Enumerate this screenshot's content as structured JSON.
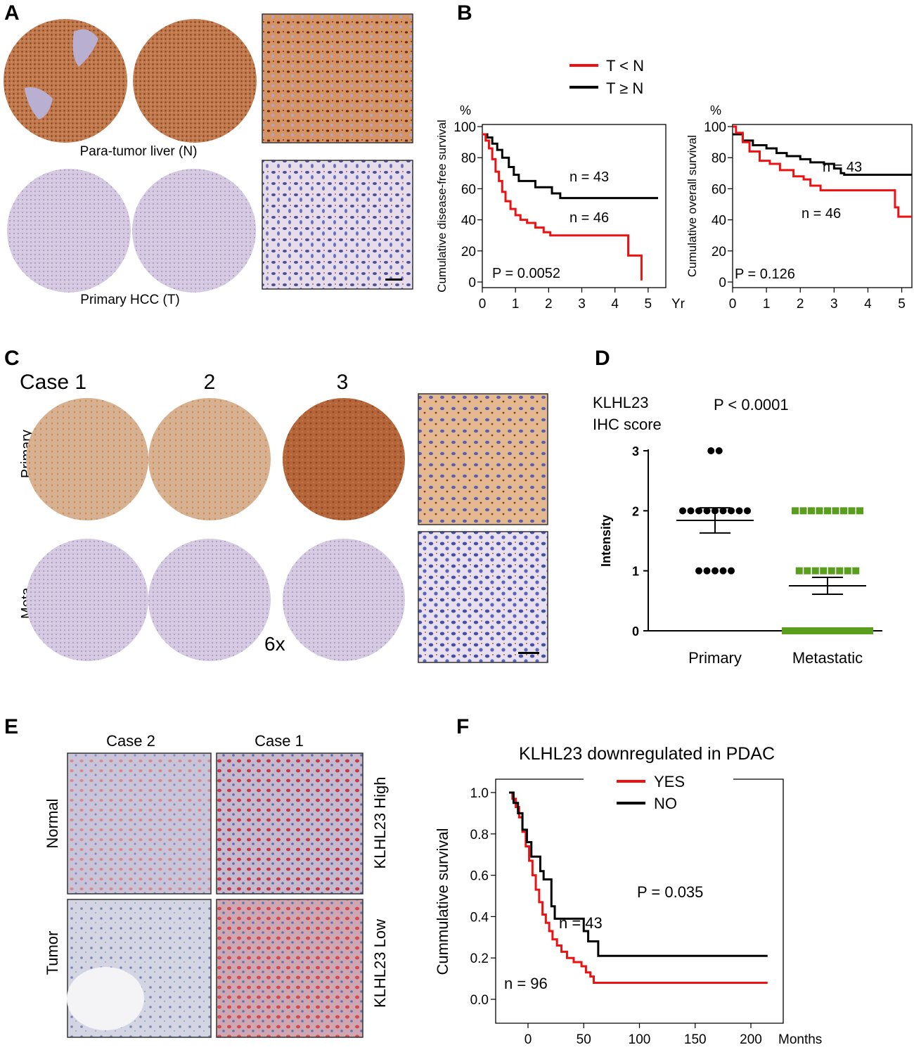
{
  "panels": {
    "A": {
      "letter": "A",
      "label_normal": "Para-tumor liver (N)",
      "label_tumor": "Primary HCC  (T)"
    },
    "B": {
      "letter": "B",
      "legend": [
        {
          "label": "T < N",
          "color": "#ee1111"
        },
        {
          "label": "T ≥ N",
          "color": "#000000"
        }
      ]
    },
    "C": {
      "letter": "C",
      "case_labels": [
        "Case 1",
        "2",
        "3"
      ],
      "row_labels": [
        "Primary",
        "Meta"
      ],
      "magnification": "6x"
    },
    "D": {
      "letter": "D"
    },
    "E": {
      "letter": "E",
      "col_labels": [
        "Case 2",
        "Case 1"
      ],
      "row_labels": [
        "Normal",
        "Tumor"
      ],
      "side_labels": [
        "KLHL23 High",
        "KLHL23 Low"
      ]
    },
    "F": {
      "letter": "F"
    }
  },
  "colors": {
    "red_series": "#ee1111",
    "black_series": "#000000",
    "green_series": "#5a9e1e",
    "ihc_brown": "#b5653a",
    "hematoxylin": "#c9bedb"
  },
  "chart_data": [
    {
      "id": "B1",
      "type": "line",
      "chart_kind": "kaplan-meier",
      "ylabel": "Cumulative disease-free survival",
      "yunit": "%",
      "xunit": "Yr",
      "xlim": [
        0,
        5.3
      ],
      "ylim": [
        0,
        100
      ],
      "xticks": [
        0,
        1,
        2,
        3,
        4,
        5
      ],
      "yticks": [
        0,
        20,
        40,
        60,
        80,
        100
      ],
      "p_value": "P = 0.0052",
      "annotations": [
        "n = 43",
        "n = 46"
      ],
      "series": [
        {
          "name": "T ≥ N",
          "color": "#000000",
          "points": [
            [
              0,
              95
            ],
            [
              0.15,
              93
            ],
            [
              0.3,
              89
            ],
            [
              0.45,
              85
            ],
            [
              0.6,
              80
            ],
            [
              0.8,
              74
            ],
            [
              0.95,
              69
            ],
            [
              1.1,
              65
            ],
            [
              1.4,
              65
            ],
            [
              1.6,
              61
            ],
            [
              1.9,
              61
            ],
            [
              2.1,
              57
            ],
            [
              2.35,
              54
            ],
            [
              5.3,
              54
            ]
          ]
        },
        {
          "name": "T < N",
          "color": "#ee1111",
          "points": [
            [
              0,
              95
            ],
            [
              0.1,
              91
            ],
            [
              0.2,
              86
            ],
            [
              0.3,
              79
            ],
            [
              0.4,
              71
            ],
            [
              0.5,
              65
            ],
            [
              0.6,
              58
            ],
            [
              0.7,
              52
            ],
            [
              0.85,
              47
            ],
            [
              1.0,
              43
            ],
            [
              1.15,
              40
            ],
            [
              1.35,
              38
            ],
            [
              1.6,
              35
            ],
            [
              1.85,
              32
            ],
            [
              2.05,
              30
            ],
            [
              4.35,
              30
            ],
            [
              4.4,
              17
            ],
            [
              4.75,
              17
            ],
            [
              4.8,
              1
            ]
          ]
        }
      ]
    },
    {
      "id": "B2",
      "type": "line",
      "chart_kind": "kaplan-meier",
      "ylabel": "Cumulative overall survival",
      "yunit": "%",
      "xunit": "Yr",
      "xlim": [
        0,
        5.3
      ],
      "ylim": [
        0,
        100
      ],
      "xticks": [
        0,
        1,
        2,
        3,
        4,
        5
      ],
      "yticks": [
        0,
        20,
        40,
        60,
        80,
        100
      ],
      "p_value": "P = 0.126",
      "annotations": [
        "n = 43",
        "n = 46"
      ],
      "series": [
        {
          "name": "T ≥ N",
          "color": "#000000",
          "points": [
            [
              0,
              95
            ],
            [
              0.3,
              91
            ],
            [
              0.6,
              88
            ],
            [
              1.0,
              86
            ],
            [
              1.3,
              83
            ],
            [
              1.6,
              81
            ],
            [
              2.0,
              79
            ],
            [
              2.3,
              77
            ],
            [
              2.7,
              76
            ],
            [
              3.0,
              73
            ],
            [
              3.2,
              70
            ],
            [
              3.3,
              69
            ],
            [
              5.3,
              69
            ]
          ]
        },
        {
          "name": "T < N",
          "color": "#ee1111",
          "points": [
            [
              0,
              100
            ],
            [
              0.1,
              96
            ],
            [
              0.3,
              90
            ],
            [
              0.5,
              84
            ],
            [
              0.8,
              78
            ],
            [
              1.1,
              76
            ],
            [
              1.4,
              72
            ],
            [
              1.8,
              68
            ],
            [
              2.1,
              66
            ],
            [
              2.3,
              62
            ],
            [
              2.6,
              59
            ],
            [
              4.7,
              59
            ],
            [
              4.8,
              48
            ],
            [
              4.9,
              42
            ],
            [
              5.3,
              42
            ]
          ]
        }
      ]
    },
    {
      "id": "D",
      "type": "scatter",
      "title_lines": [
        "KLHL23",
        "IHC score"
      ],
      "p_value": "P < 0.0001",
      "ylabel": "Intensity",
      "categories": [
        "Primary",
        "Metastatic"
      ],
      "ylim": [
        0,
        3
      ],
      "yticks": [
        0,
        1,
        2,
        3
      ],
      "groups": [
        {
          "name": "Primary",
          "color": "#000000",
          "mean": 1.84,
          "sem": 0.21,
          "counts": [
            {
              "value": 3,
              "n": 2
            },
            {
              "value": 2,
              "n": 9
            },
            {
              "value": 1,
              "n": 5
            }
          ]
        },
        {
          "name": "Metastatic",
          "color": "#5a9e1e",
          "mean": 0.75,
          "sem": 0.14,
          "counts": [
            {
              "value": 2,
              "n": 9
            },
            {
              "value": 1,
              "n": 8
            },
            {
              "value": 0,
              "n": 28
            }
          ]
        }
      ]
    },
    {
      "id": "F",
      "type": "line",
      "chart_kind": "kaplan-meier",
      "title": "KLHL23 downregulated in PDAC",
      "ylabel": "Cummulative survival",
      "xlabel": "Months",
      "xlim": [
        -20,
        215
      ],
      "ylim": [
        0,
        1.0
      ],
      "xticks": [
        0,
        50,
        100,
        150,
        200
      ],
      "yticks": [
        "0.0",
        "0.2",
        "0.4",
        "0.6",
        "0.8",
        "1.0"
      ],
      "p_value": "P = 0.035",
      "annotations": [
        "n = 43",
        "n = 96"
      ],
      "series": [
        {
          "name": "YES",
          "color": "#ee1111",
          "points": [
            [
              -17,
              1.0
            ],
            [
              -14,
              0.97
            ],
            [
              -11,
              0.93
            ],
            [
              -8,
              0.88
            ],
            [
              -5,
              0.81
            ],
            [
              -2,
              0.74
            ],
            [
              1,
              0.67
            ],
            [
              4,
              0.6
            ],
            [
              7,
              0.53
            ],
            [
              10,
              0.47
            ],
            [
              13,
              0.41
            ],
            [
              16,
              0.37
            ],
            [
              19,
              0.33
            ],
            [
              22,
              0.29
            ],
            [
              26,
              0.26
            ],
            [
              30,
              0.23
            ],
            [
              35,
              0.2
            ],
            [
              41,
              0.18
            ],
            [
              48,
              0.16
            ],
            [
              52,
              0.13
            ],
            [
              56,
              0.11
            ],
            [
              59,
              0.08
            ],
            [
              215,
              0.08
            ]
          ]
        },
        {
          "name": "NO",
          "color": "#000000",
          "points": [
            [
              -17,
              1.0
            ],
            [
              -13,
              0.95
            ],
            [
              -9,
              0.9
            ],
            [
              -5,
              0.82
            ],
            [
              -1,
              0.76
            ],
            [
              3,
              0.69
            ],
            [
              8,
              0.69
            ],
            [
              11,
              0.62
            ],
            [
              14,
              0.58
            ],
            [
              18,
              0.58
            ],
            [
              21,
              0.45
            ],
            [
              24,
              0.39
            ],
            [
              47,
              0.39
            ],
            [
              50,
              0.33
            ],
            [
              54,
              0.28
            ],
            [
              61,
              0.28
            ],
            [
              63,
              0.21
            ],
            [
              215,
              0.21
            ]
          ]
        }
      ]
    }
  ]
}
